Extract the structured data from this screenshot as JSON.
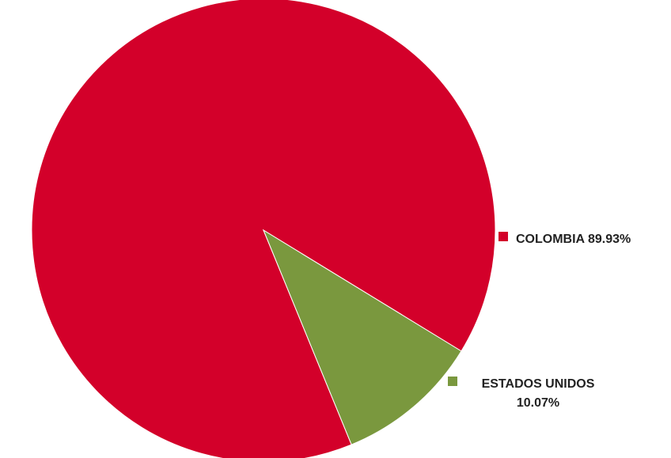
{
  "chart_data": {
    "type": "pie",
    "title": "",
    "slices": [
      {
        "name": "COLOMBIA",
        "value": 89.93,
        "value_label": "89.93%",
        "color": "#d3002a",
        "label_lines": [
          "COLOMBIA 89.93%"
        ]
      },
      {
        "name": "ESTADOS UNIDOS",
        "value": 10.07,
        "value_label": "10.07%",
        "color": "#7a983e",
        "label_lines": [
          "ESTADOS UNIDOS",
          "10.07%"
        ]
      }
    ],
    "legend": "inline-right"
  }
}
